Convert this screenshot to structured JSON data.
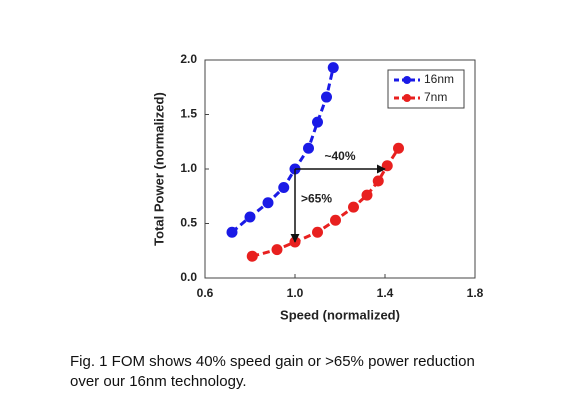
{
  "chart_data": {
    "type": "line",
    "xlabel": "Speed (normalized)",
    "ylabel": "Total Power (normalized)",
    "xlim": [
      0.6,
      1.8
    ],
    "xticks": [
      0.6,
      {
        "value": 1.0,
        "label": "1.0"
      },
      1.4,
      1.8
    ],
    "ylim": [
      0,
      2
    ],
    "yticks": [
      {
        "value": 0,
        "label": "0.0"
      },
      0.5,
      {
        "value": 1.0,
        "label": "1.0"
      },
      1.5,
      {
        "value": 2.0,
        "label": "2.0"
      }
    ],
    "grid": false,
    "legend": "upper right",
    "series": [
      {
        "name": "16nm",
        "color": "#1a1ae6",
        "x": [
          0.72,
          0.8,
          0.88,
          0.95,
          1.0,
          1.06,
          1.1,
          1.14,
          1.17
        ],
        "values": [
          0.42,
          0.56,
          0.69,
          0.83,
          1.0,
          1.19,
          1.43,
          1.66,
          1.93
        ]
      },
      {
        "name": "7nm",
        "color": "#e8201f",
        "x": [
          0.81,
          0.92,
          1.0,
          1.1,
          1.18,
          1.26,
          1.32,
          1.37,
          1.41,
          1.46
        ],
        "values": [
          0.2,
          0.26,
          0.33,
          0.42,
          0.53,
          0.65,
          0.76,
          0.89,
          1.03,
          1.19
        ]
      }
    ],
    "annotations": [
      "~40%",
      ">65%"
    ],
    "caption": [
      "Fig. 1 FOM shows 40% speed gain or >65% power reduction",
      "over our 16nm technology."
    ]
  }
}
